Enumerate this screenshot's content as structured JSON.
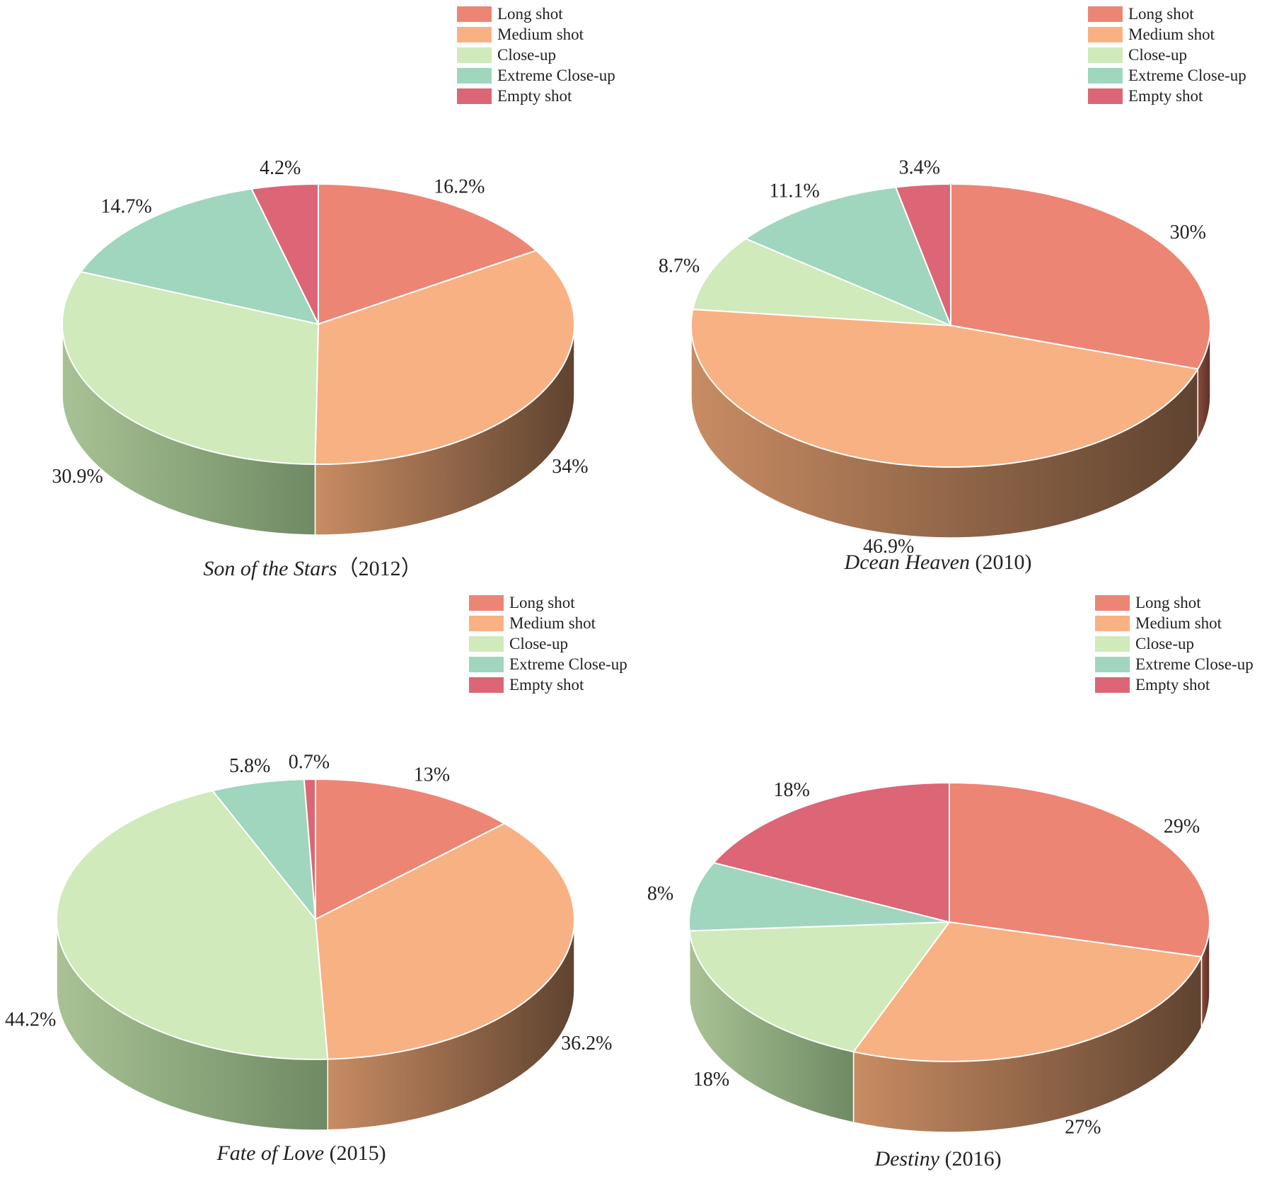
{
  "colors": {
    "Long shot": "#ec8574",
    "Medium shot": "#f8b183",
    "Close-up": "#d0eabb",
    "Extreme Close-up": "#9fd6bd",
    "Empty shot": "#dc6676"
  },
  "chart_data": [
    {
      "type": "pie",
      "title": "Son of the Stars（2012）",
      "movie": "Son of the Stars",
      "year": "（2012）",
      "legend_position": "top-right",
      "categories": [
        "Long shot",
        "Medium shot",
        "Close-up",
        "Extreme Close-up",
        "Empty shot"
      ],
      "values": [
        16.2,
        34,
        30.9,
        14.7,
        4.2
      ],
      "value_labels": [
        "16.2%",
        "34%",
        "30.9%",
        "14.7%",
        "4.2%"
      ]
    },
    {
      "type": "pie",
      "title": "Dcean Heaven (2010)",
      "movie": "Dcean Heaven",
      "year": " (2010)",
      "legend_position": "top-right",
      "categories": [
        "Long shot",
        "Medium shot",
        "Close-up",
        "Extreme Close-up",
        "Empty shot"
      ],
      "values": [
        30,
        46.9,
        8.7,
        11.1,
        3.4
      ],
      "value_labels": [
        "30%",
        "46.9%",
        "8.7%",
        "11.1%",
        "3.4%"
      ]
    },
    {
      "type": "pie",
      "title": "Fate of Love (2015)",
      "movie": "Fate of Love",
      "year": " (2015)",
      "legend_position": "top-right",
      "categories": [
        "Long shot",
        "Medium shot",
        "Close-up",
        "Extreme Close-up",
        "Empty shot"
      ],
      "values": [
        13,
        36.2,
        44.2,
        5.8,
        0.7
      ],
      "value_labels": [
        "13%",
        "36.2%",
        "44.2%",
        "5.8%",
        "0.7%"
      ]
    },
    {
      "type": "pie",
      "title": "Destiny (2016)",
      "movie": "Destiny",
      "year": " (2016)",
      "legend_position": "top-right",
      "categories": [
        "Long shot",
        "Medium shot",
        "Close-up",
        "Extreme Close-up",
        "Empty shot"
      ],
      "values": [
        29,
        27,
        18,
        8,
        18
      ],
      "value_labels": [
        "29%",
        "27%",
        "18%",
        "8%",
        "18%"
      ]
    }
  ]
}
